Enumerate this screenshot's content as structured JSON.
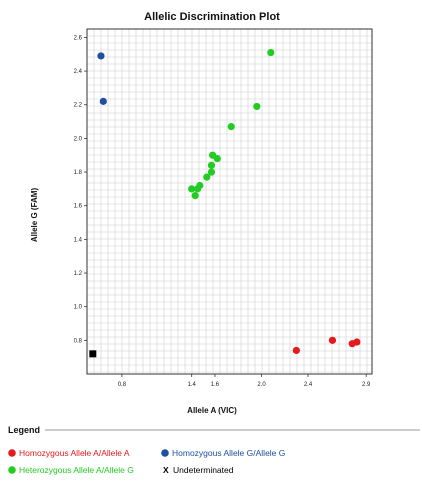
{
  "chart_data": {
    "type": "scatter",
    "title": "Allelic Discrimination Plot",
    "xlabel": "Allele A (VIC)",
    "ylabel": "Allele G (FAM)",
    "xlim": [
      0.5,
      2.95
    ],
    "ylim": [
      0.6,
      2.65
    ],
    "x_ticks": [
      "0.8",
      "1.4",
      "1.6",
      "2.0",
      "2.4",
      "2.9"
    ],
    "x_tick_values": [
      0.8,
      1.4,
      1.6,
      2.0,
      2.4,
      2.9
    ],
    "y_ticks": [
      "0.8",
      "1.0",
      "1.2",
      "1.4",
      "1.6",
      "1.8",
      "2.0",
      "2.2",
      "2.4",
      "2.6"
    ],
    "y_tick_values": [
      0.8,
      1.0,
      1.2,
      1.4,
      1.6,
      1.8,
      2.0,
      2.2,
      2.4,
      2.6
    ],
    "grid": true,
    "series": [
      {
        "name": "Homozygous Allele A/Allele A",
        "color": "#e41a1c",
        "marker": "circle",
        "points": [
          [
            2.3,
            0.74
          ],
          [
            2.61,
            0.8
          ],
          [
            2.78,
            0.78
          ],
          [
            2.82,
            0.79
          ]
        ]
      },
      {
        "name": "Homozygous Allele G/Allele G",
        "color": "#1f4ea3",
        "marker": "circle",
        "points": [
          [
            0.62,
            2.49
          ],
          [
            0.64,
            2.22
          ]
        ]
      },
      {
        "name": "Heterozygous Allele A/Allele G",
        "color": "#22cc22",
        "marker": "circle",
        "points": [
          [
            1.4,
            1.7
          ],
          [
            1.43,
            1.66
          ],
          [
            1.45,
            1.7
          ],
          [
            1.47,
            1.72
          ],
          [
            1.53,
            1.77
          ],
          [
            1.57,
            1.8
          ],
          [
            1.57,
            1.84
          ],
          [
            1.58,
            1.9
          ],
          [
            1.62,
            1.88
          ],
          [
            1.74,
            2.07
          ],
          [
            1.96,
            2.19
          ],
          [
            2.08,
            2.51
          ]
        ]
      },
      {
        "name": "Undeterminated",
        "color": "#000000",
        "marker": "square",
        "points": [
          [
            0.55,
            0.72
          ]
        ]
      }
    ],
    "legend": {
      "title": "Legend",
      "placement": "bottom",
      "label_prefix": "X"
    }
  }
}
